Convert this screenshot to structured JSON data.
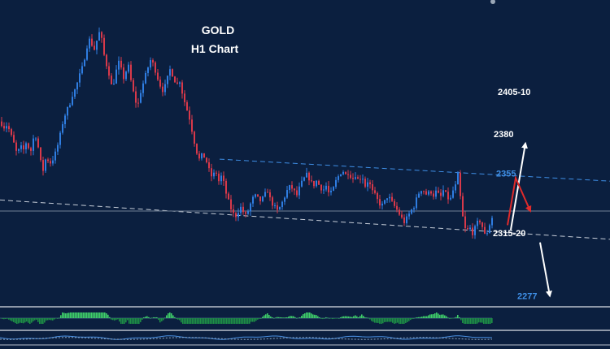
{
  "chart_data": {
    "type": "candlestick",
    "title": "GOLD",
    "subtitle": "H1 Chart",
    "y_range": [
      2270,
      2455
    ],
    "colors": {
      "background": "#0b1f3f",
      "bull": "#2f7de1",
      "bear": "#d8394a",
      "upper_trendline": "#3f8fe6",
      "lower_trendline": "#c6cdd8",
      "support_line": "#6f7f95",
      "osc_pos": "#3fcf6a",
      "osc_neg": "#1e8f46"
    },
    "levels": [
      {
        "label": "2405-10",
        "value": 2407,
        "color": "#ffffff"
      },
      {
        "label": "2380",
        "value": 2380,
        "color": "#ffffff"
      },
      {
        "label": "2355",
        "value": 2355,
        "color": "#3f8fe6"
      },
      {
        "label": "2315-20",
        "value": 2317,
        "color": "#ffffff"
      },
      {
        "label": "2277",
        "value": 2277,
        "color": "#3f8fe6"
      }
    ],
    "support_level": 2331,
    "close_points": [
      [
        0,
        2388
      ],
      [
        3,
        2384
      ],
      [
        8,
        2386
      ],
      [
        12,
        2380
      ],
      [
        16,
        2374
      ],
      [
        20,
        2367
      ],
      [
        24,
        2372
      ],
      [
        28,
        2370
      ],
      [
        32,
        2376
      ],
      [
        36,
        2367
      ],
      [
        40,
        2377
      ],
      [
        44,
        2379
      ],
      [
        48,
        2364
      ],
      [
        52,
        2357
      ],
      [
        56,
        2366
      ],
      [
        60,
        2361
      ],
      [
        64,
        2364
      ],
      [
        68,
        2369
      ],
      [
        72,
        2377
      ],
      [
        76,
        2387
      ],
      [
        80,
        2394
      ],
      [
        84,
        2398
      ],
      [
        88,
        2405
      ],
      [
        92,
        2409
      ],
      [
        96,
        2416
      ],
      [
        100,
        2422
      ],
      [
        104,
        2431
      ],
      [
        108,
        2441
      ],
      [
        112,
        2437
      ],
      [
        116,
        2433
      ],
      [
        120,
        2446
      ],
      [
        124,
        2440
      ],
      [
        128,
        2427
      ],
      [
        132,
        2421
      ],
      [
        136,
        2411
      ],
      [
        140,
        2414
      ],
      [
        144,
        2427
      ],
      [
        148,
        2421
      ],
      [
        152,
        2414
      ],
      [
        156,
        2426
      ],
      [
        160,
        2414
      ],
      [
        164,
        2404
      ],
      [
        168,
        2397
      ],
      [
        172,
        2407
      ],
      [
        176,
        2414
      ],
      [
        180,
        2421
      ],
      [
        184,
        2427
      ],
      [
        188,
        2424
      ],
      [
        192,
        2417
      ],
      [
        196,
        2411
      ],
      [
        200,
        2407
      ],
      [
        204,
        2414
      ],
      [
        208,
        2421
      ],
      [
        212,
        2417
      ],
      [
        216,
        2411
      ],
      [
        220,
        2414
      ],
      [
        224,
        2404
      ],
      [
        228,
        2397
      ],
      [
        232,
        2390
      ],
      [
        236,
        2380
      ],
      [
        240,
        2370
      ],
      [
        244,
        2364
      ],
      [
        248,
        2367
      ],
      [
        252,
        2364
      ],
      [
        256,
        2357
      ],
      [
        260,
        2352
      ],
      [
        264,
        2357
      ],
      [
        268,
        2350
      ],
      [
        272,
        2354
      ],
      [
        276,
        2344
      ],
      [
        280,
        2337
      ],
      [
        284,
        2331
      ],
      [
        288,
        2327
      ],
      [
        292,
        2331
      ],
      [
        296,
        2334
      ],
      [
        300,
        2327
      ],
      [
        304,
        2331
      ],
      [
        308,
        2337
      ],
      [
        312,
        2341
      ],
      [
        316,
        2339
      ],
      [
        320,
        2337
      ],
      [
        324,
        2341
      ],
      [
        328,
        2344
      ],
      [
        332,
        2337
      ],
      [
        336,
        2334
      ],
      [
        340,
        2331
      ],
      [
        344,
        2334
      ],
      [
        348,
        2339
      ],
      [
        352,
        2344
      ],
      [
        356,
        2347
      ],
      [
        360,
        2344
      ],
      [
        364,
        2341
      ],
      [
        368,
        2347
      ],
      [
        372,
        2351
      ],
      [
        376,
        2354
      ],
      [
        380,
        2351
      ],
      [
        384,
        2347
      ],
      [
        388,
        2350
      ],
      [
        392,
        2347
      ],
      [
        396,
        2344
      ],
      [
        400,
        2347
      ],
      [
        404,
        2341
      ],
      [
        408,
        2344
      ],
      [
        412,
        2350
      ],
      [
        416,
        2354
      ],
      [
        420,
        2357
      ],
      [
        424,
        2354
      ],
      [
        428,
        2356
      ],
      [
        432,
        2351
      ],
      [
        436,
        2354
      ],
      [
        440,
        2350
      ],
      [
        444,
        2354
      ],
      [
        448,
        2347
      ],
      [
        452,
        2351
      ],
      [
        456,
        2344
      ],
      [
        460,
        2341
      ],
      [
        464,
        2337
      ],
      [
        468,
        2334
      ],
      [
        472,
        2337
      ],
      [
        476,
        2341
      ],
      [
        480,
        2337
      ],
      [
        484,
        2334
      ],
      [
        488,
        2331
      ],
      [
        492,
        2327
      ],
      [
        496,
        2324
      ],
      [
        500,
        2327
      ],
      [
        504,
        2331
      ],
      [
        508,
        2334
      ],
      [
        512,
        2340
      ],
      [
        516,
        2345
      ],
      [
        520,
        2344
      ],
      [
        524,
        2341
      ],
      [
        528,
        2344
      ],
      [
        532,
        2341
      ],
      [
        536,
        2344
      ],
      [
        540,
        2339
      ],
      [
        544,
        2344
      ],
      [
        548,
        2341
      ],
      [
        552,
        2337
      ],
      [
        556,
        2344
      ],
      [
        560,
        2348
      ],
      [
        562,
        2354
      ],
      [
        564,
        2344
      ],
      [
        568,
        2327
      ],
      [
        572,
        2317
      ],
      [
        576,
        2321
      ],
      [
        580,
        2317
      ],
      [
        584,
        2321
      ],
      [
        588,
        2326
      ],
      [
        592,
        2321
      ],
      [
        596,
        2314
      ],
      [
        600,
        2321
      ],
      [
        604,
        2327
      ]
    ],
    "projections": [
      {
        "color": "#ffffff",
        "points": [
          [
            628,
            2319
          ],
          [
            646,
            2374
          ]
        ]
      },
      {
        "color": "#e02b2b",
        "points": [
          [
            624,
            2322
          ],
          [
            634,
            2352
          ],
          [
            652,
            2331
          ]
        ]
      },
      {
        "color": "#ffffff",
        "points": [
          [
            664,
            2311
          ],
          [
            676,
            2277
          ]
        ]
      }
    ]
  }
}
